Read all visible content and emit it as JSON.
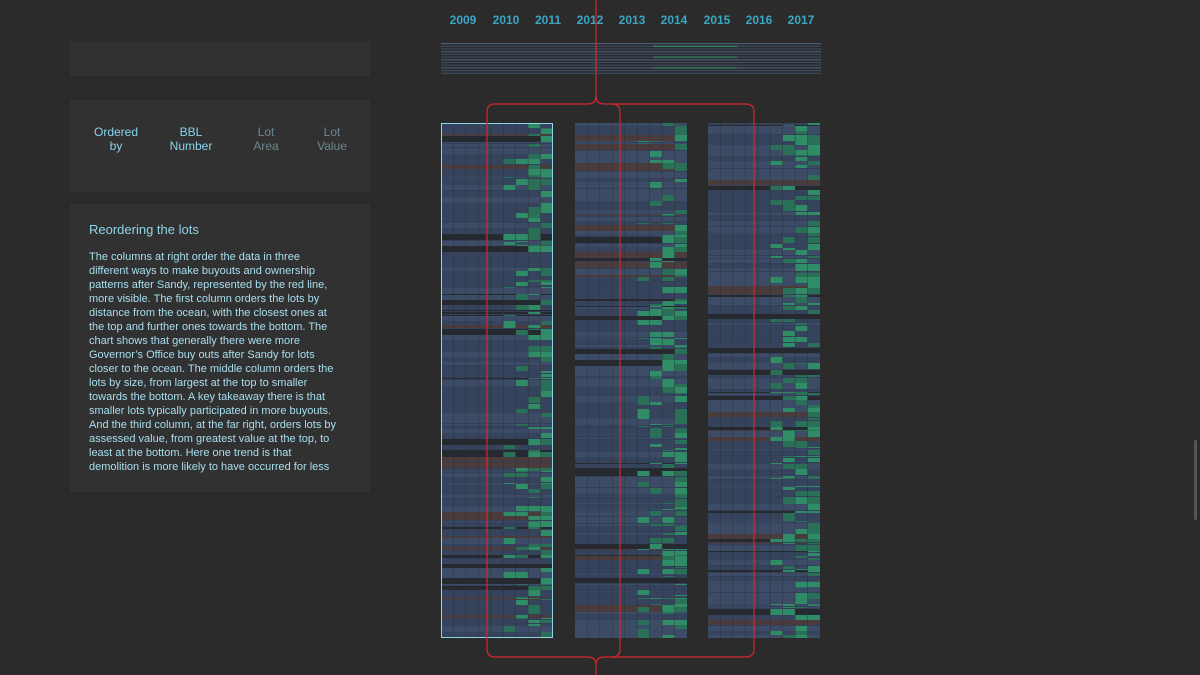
{
  "years": [
    "2009",
    "2010",
    "2011",
    "2012",
    "2013",
    "2014",
    "2015",
    "2016",
    "2017"
  ],
  "order_options": [
    {
      "lines": [
        "Ordered",
        "by"
      ]
    },
    {
      "lines": [
        "BBL",
        "Number"
      ]
    },
    {
      "lines": [
        "Lot",
        "Area"
      ]
    },
    {
      "lines": [
        "Lot",
        "Value"
      ]
    }
  ],
  "article": {
    "heading": "Reordering the lots",
    "lines": [
      "The columns at right order the data in three",
      "different ways to make buyouts and ownership",
      "patterns after Sandy, represented by the red line,",
      "more visible. The first column orders the lots by",
      "distance from the ocean, with the closest ones at",
      "the top and further ones towards the bottom. The",
      "chart shows that generally there were more",
      "Governor’s Office buy outs after Sandy for lots",
      "closer to the ocean. The middle column orders the",
      "lots by size, from largest at the top to smaller",
      "towards the bottom. A key takeaway there is that",
      "smaller lots typically participated in more buyouts.",
      "And the third column, at the far right, orders lots by",
      "assessed value, from greatest value at the top, to",
      "least at the bottom. Here one trend is that",
      "demolition is more likely to have occurred for less"
    ]
  }
}
